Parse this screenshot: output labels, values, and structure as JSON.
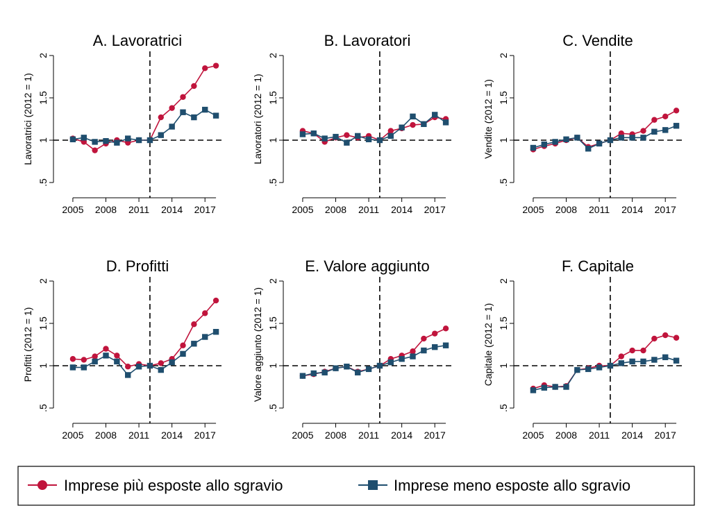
{
  "colors": {
    "more_exposed": "#c0143c",
    "less_exposed": "#1f4e6e",
    "reference": "#000000"
  },
  "legend": {
    "more_exposed": "Imprese più esposte allo sgravio",
    "less_exposed": "Imprese meno esposte allo sgravio"
  },
  "chart_data": [
    {
      "type": "line",
      "title": "A. Lavoratrici",
      "ylabel": "Lavoratrici (2012 = 1)",
      "x": [
        2005,
        2006,
        2007,
        2008,
        2009,
        2010,
        2011,
        2012,
        2013,
        2014,
        2015,
        2016,
        2017,
        2018
      ],
      "xticks": [
        "2005",
        "2008",
        "2011",
        "2014",
        "2017"
      ],
      "yticks": [
        ".5",
        "1",
        "1.5",
        "2"
      ],
      "xlim": [
        2004.5,
        2018.5
      ],
      "ylim": [
        0.5,
        2.0
      ],
      "reference_x": 2012,
      "reference_y": 1,
      "series": [
        {
          "name": "Imprese più esposte allo sgravio",
          "marker": "circle",
          "values": [
            1.02,
            0.98,
            0.88,
            0.96,
            1.0,
            0.97,
            1.0,
            1.0,
            1.27,
            1.38,
            1.51,
            1.64,
            1.85,
            1.88
          ]
        },
        {
          "name": "Imprese meno esposte allo sgravio",
          "marker": "square",
          "values": [
            1.01,
            1.03,
            0.98,
            0.99,
            0.97,
            1.02,
            1.0,
            1.0,
            1.06,
            1.16,
            1.33,
            1.27,
            1.36,
            1.29
          ]
        }
      ]
    },
    {
      "type": "line",
      "title": "B. Lavoratori",
      "ylabel": "Lavoratori (2012 = 1)",
      "x": [
        2005,
        2006,
        2007,
        2008,
        2009,
        2010,
        2011,
        2012,
        2013,
        2014,
        2015,
        2016,
        2017,
        2018
      ],
      "xticks": [
        "2005",
        "2008",
        "2011",
        "2014",
        "2017"
      ],
      "yticks": [
        ".5",
        "1",
        "1.5",
        "2"
      ],
      "xlim": [
        2004.5,
        2018.5
      ],
      "ylim": [
        0.5,
        2.0
      ],
      "reference_x": 2012,
      "reference_y": 1,
      "series": [
        {
          "name": "Imprese più esposte allo sgravio",
          "marker": "circle",
          "values": [
            1.11,
            1.08,
            0.98,
            1.03,
            1.06,
            1.03,
            1.05,
            1.0,
            1.11,
            1.14,
            1.18,
            1.19,
            1.27,
            1.25
          ]
        },
        {
          "name": "Imprese meno esposte allo sgravio",
          "marker": "square",
          "values": [
            1.07,
            1.08,
            1.02,
            1.04,
            0.97,
            1.05,
            1.01,
            1.0,
            1.05,
            1.15,
            1.28,
            1.19,
            1.3,
            1.21
          ]
        }
      ]
    },
    {
      "type": "line",
      "title": "C. Vendite",
      "ylabel": "Vendite (2012 = 1)",
      "x": [
        2005,
        2006,
        2007,
        2008,
        2009,
        2010,
        2011,
        2012,
        2013,
        2014,
        2015,
        2016,
        2017,
        2018
      ],
      "xticks": [
        "2005",
        "2008",
        "2011",
        "2014",
        "2017"
      ],
      "yticks": [
        ".5",
        "1",
        "1.5",
        "2"
      ],
      "xlim": [
        2004.5,
        2018.5
      ],
      "ylim": [
        0.5,
        2.0
      ],
      "reference_x": 2012,
      "reference_y": 1,
      "series": [
        {
          "name": "Imprese più esposte allo sgravio",
          "marker": "circle",
          "values": [
            0.89,
            0.93,
            0.96,
            1.0,
            1.03,
            0.92,
            0.96,
            1.0,
            1.08,
            1.07,
            1.11,
            1.24,
            1.28,
            1.35
          ]
        },
        {
          "name": "Imprese meno esposte allo sgravio",
          "marker": "square",
          "values": [
            0.91,
            0.95,
            0.98,
            1.01,
            1.03,
            0.9,
            0.96,
            1.0,
            1.03,
            1.03,
            1.03,
            1.1,
            1.12,
            1.17
          ]
        }
      ]
    },
    {
      "type": "line",
      "title": "D. Profitti",
      "ylabel": "Profitti (2012 = 1)",
      "x": [
        2005,
        2006,
        2007,
        2008,
        2009,
        2010,
        2011,
        2012,
        2013,
        2014,
        2015,
        2016,
        2017,
        2018
      ],
      "xticks": [
        "2005",
        "2008",
        "2011",
        "2014",
        "2017"
      ],
      "yticks": [
        ".5",
        "1",
        "1.5",
        "2"
      ],
      "xlim": [
        2004.5,
        2018.5
      ],
      "ylim": [
        0.5,
        2.0
      ],
      "reference_x": 2012,
      "reference_y": 1,
      "series": [
        {
          "name": "Imprese più esposte allo sgravio",
          "marker": "circle",
          "values": [
            1.08,
            1.07,
            1.11,
            1.2,
            1.12,
            0.99,
            1.02,
            1.0,
            1.03,
            1.08,
            1.24,
            1.49,
            1.62,
            1.77
          ]
        },
        {
          "name": "Imprese meno esposte allo sgravio",
          "marker": "square",
          "values": [
            0.98,
            0.98,
            1.05,
            1.12,
            1.05,
            0.89,
            0.99,
            1.0,
            0.95,
            1.04,
            1.14,
            1.26,
            1.34,
            1.4
          ]
        }
      ]
    },
    {
      "type": "line",
      "title": "E. Valore aggiunto",
      "ylabel": "Valore aggiunto (2012 = 1)",
      "x": [
        2005,
        2006,
        2007,
        2008,
        2009,
        2010,
        2011,
        2012,
        2013,
        2014,
        2015,
        2016,
        2017,
        2018
      ],
      "xticks": [
        "2005",
        "2008",
        "2011",
        "2014",
        "2017"
      ],
      "yticks": [
        ".5",
        "1",
        "1.5",
        "2"
      ],
      "xlim": [
        2004.5,
        2018.5
      ],
      "ylim": [
        0.5,
        2.0
      ],
      "reference_x": 2012,
      "reference_y": 1,
      "series": [
        {
          "name": "Imprese più esposte allo sgravio",
          "marker": "circle",
          "values": [
            0.88,
            0.9,
            0.93,
            0.97,
            0.99,
            0.93,
            0.96,
            1.0,
            1.08,
            1.12,
            1.17,
            1.32,
            1.38,
            1.44
          ]
        },
        {
          "name": "Imprese meno esposte allo sgravio",
          "marker": "square",
          "values": [
            0.88,
            0.91,
            0.92,
            0.97,
            0.99,
            0.92,
            0.96,
            1.0,
            1.04,
            1.08,
            1.11,
            1.18,
            1.22,
            1.24
          ]
        }
      ]
    },
    {
      "type": "line",
      "title": "F. Capitale",
      "ylabel": "Capitale (2012 = 1)",
      "x": [
        2005,
        2006,
        2007,
        2008,
        2009,
        2010,
        2011,
        2012,
        2013,
        2014,
        2015,
        2016,
        2017,
        2018
      ],
      "xticks": [
        "2005",
        "2008",
        "2011",
        "2014",
        "2017"
      ],
      "yticks": [
        ".5",
        "1",
        "1.5",
        "2"
      ],
      "xlim": [
        2004.5,
        2018.5
      ],
      "ylim": [
        0.5,
        2.0
      ],
      "reference_x": 2012,
      "reference_y": 1,
      "series": [
        {
          "name": "Imprese più esposte allo sgravio",
          "marker": "circle",
          "values": [
            0.73,
            0.77,
            0.75,
            0.76,
            0.95,
            0.97,
            1.0,
            1.0,
            1.11,
            1.18,
            1.18,
            1.32,
            1.36,
            1.33
          ]
        },
        {
          "name": "Imprese meno esposte allo sgravio",
          "marker": "square",
          "values": [
            0.71,
            0.74,
            0.75,
            0.75,
            0.95,
            0.96,
            0.98,
            1.0,
            1.03,
            1.05,
            1.05,
            1.07,
            1.1,
            1.06
          ]
        }
      ]
    }
  ]
}
